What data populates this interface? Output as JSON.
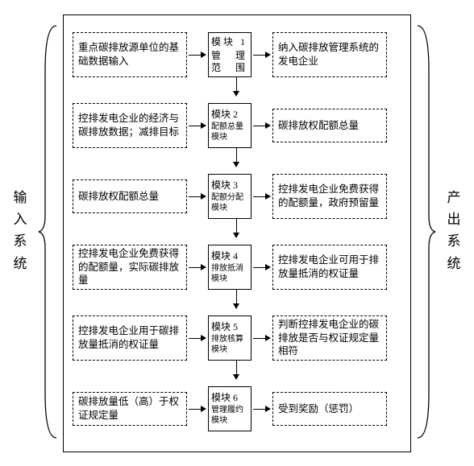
{
  "sides": {
    "left": "输入系统",
    "right": "产出系统"
  },
  "rows": [
    {
      "input": "重点碳排放源单位的基础数据输入",
      "module_title": "模块 1",
      "module_sub": "管　理\n范　围",
      "output": "纳入碳排放管理系统的发电企业"
    },
    {
      "input": "控排发电企业的经济与碳排放数据；减排目标",
      "module_title": "模块 2",
      "module_sub": "配额总量模块",
      "output": "碳排放权配额总量"
    },
    {
      "input": "碳排放权配额总量",
      "module_title": "模块 3",
      "module_sub": "配额分配模块",
      "output": "控排发电企业免费获得的配额量，政府预留量"
    },
    {
      "input": "控排发电企业免费获得的配额量，实际碳排放量",
      "module_title": "模块 4",
      "module_sub": "排放抵消模块",
      "output": "控排发电企业可用于排放量抵消的权证量"
    },
    {
      "input": "控排发电企业用于碳排放量抵消的权证量",
      "module_title": "模块 5",
      "module_sub": "排放核算模块",
      "output": "判断控排发电企业的碳排放是否与权证规定量相符"
    },
    {
      "input": "碳排放量低（高）于权证规定量",
      "module_title": "模块 6",
      "module_sub": "管理履约模块",
      "output": "受到奖励（惩罚）"
    }
  ],
  "colors": {
    "stroke": "#000000",
    "background": "#ffffff"
  }
}
